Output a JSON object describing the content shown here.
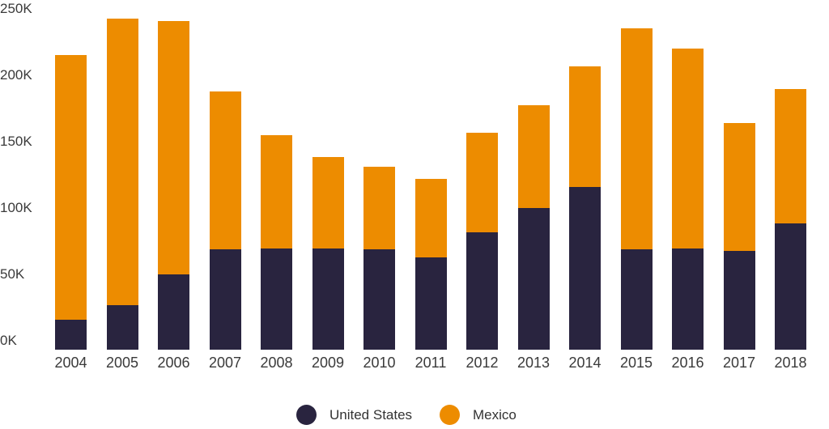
{
  "chart_data": {
    "type": "bar",
    "stacked": true,
    "title": "",
    "xlabel": "",
    "ylabel": "",
    "ylim": [
      0,
      250000
    ],
    "yticks": [
      {
        "value": 0,
        "label": "0K"
      },
      {
        "value": 50000,
        "label": "50K"
      },
      {
        "value": 100000,
        "label": "100K"
      },
      {
        "value": 150000,
        "label": "150K"
      },
      {
        "value": 200000,
        "label": "200K"
      },
      {
        "value": 250000,
        "label": "250K"
      }
    ],
    "grid": false,
    "legend_position": "bottom",
    "categories": [
      "2004",
      "2005",
      "2006",
      "2007",
      "2008",
      "2009",
      "2010",
      "2011",
      "2012",
      "2013",
      "2014",
      "2015",
      "2016",
      "2017",
      "2018"
    ],
    "series": [
      {
        "name": "United States",
        "color": "#29243F",
        "values": [
          22600,
          33500,
          56700,
          75600,
          76200,
          76200,
          75600,
          69500,
          88400,
          106700,
          122600,
          75600,
          76200,
          74400,
          95100
        ]
      },
      {
        "name": "Mexico",
        "color": "#ED8C00",
        "values": [
          199400,
          215900,
          190900,
          118900,
          85400,
          68900,
          62200,
          59200,
          75000,
          77500,
          90800,
          166500,
          150600,
          96300,
          101300
        ]
      }
    ]
  },
  "legend": {
    "items": [
      {
        "label": "United States",
        "color": "#29243F"
      },
      {
        "label": "Mexico",
        "color": "#ED8C00"
      }
    ]
  }
}
